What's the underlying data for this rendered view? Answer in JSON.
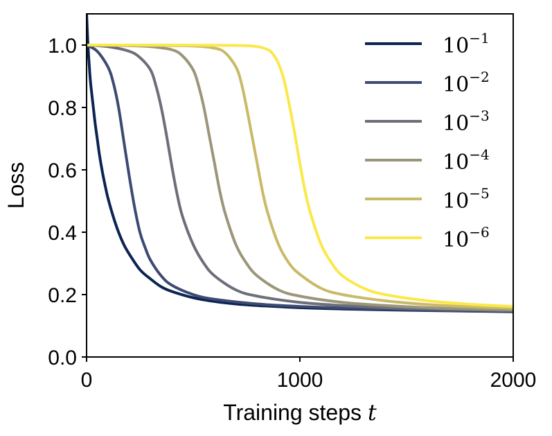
{
  "chart_data": {
    "type": "line",
    "title": "",
    "xlabel": "Training steps",
    "xlabel_var": "t",
    "ylabel": "Loss",
    "xlim": [
      0,
      2000
    ],
    "ylim": [
      0,
      1.1
    ],
    "xticks": [
      0,
      1000,
      2000
    ],
    "yticks": [
      0.0,
      0.2,
      0.4,
      0.6,
      0.8,
      1.0
    ],
    "xtick_labels": [
      "0",
      "1000",
      "2000"
    ],
    "ytick_labels": [
      "0.0",
      "0.2",
      "0.4",
      "0.6",
      "0.8",
      "1.0"
    ],
    "grid": false,
    "legend_position": "top-right",
    "series": [
      {
        "name": "10^-1",
        "base": "10",
        "exponent": "−1",
        "color": "#0b2451",
        "x": [
          0,
          5,
          10,
          15,
          20,
          30,
          40,
          50,
          60,
          75,
          90,
          100,
          125,
          150,
          175,
          200,
          250,
          300,
          350,
          400,
          500,
          600,
          700,
          800,
          1000,
          1200,
          1400,
          1600,
          1800,
          2000
        ],
        "y": [
          1.1,
          1.02,
          0.96,
          0.91,
          0.87,
          0.81,
          0.75,
          0.7,
          0.65,
          0.59,
          0.54,
          0.51,
          0.45,
          0.4,
          0.36,
          0.33,
          0.28,
          0.25,
          0.225,
          0.21,
          0.19,
          0.178,
          0.17,
          0.165,
          0.158,
          0.154,
          0.151,
          0.149,
          0.147,
          0.145
        ]
      },
      {
        "name": "10^-2",
        "base": "10",
        "exponent": "−2",
        "color": "#3d4a72",
        "x": [
          0,
          50,
          100,
          125,
          150,
          175,
          200,
          225,
          250,
          275,
          300,
          350,
          400,
          500,
          600,
          800,
          1000,
          1200,
          1400,
          1600,
          1800,
          2000
        ],
        "y": [
          1.0,
          0.98,
          0.93,
          0.88,
          0.8,
          0.69,
          0.58,
          0.48,
          0.4,
          0.35,
          0.31,
          0.26,
          0.23,
          0.2,
          0.185,
          0.17,
          0.162,
          0.157,
          0.153,
          0.15,
          0.148,
          0.146
        ]
      },
      {
        "name": "10^-3",
        "base": "10",
        "exponent": "−3",
        "color": "#6c6f79",
        "x": [
          0,
          100,
          200,
          250,
          300,
          325,
          350,
          375,
          400,
          425,
          450,
          500,
          550,
          600,
          700,
          800,
          1000,
          1200,
          1400,
          1600,
          1800,
          2000
        ],
        "y": [
          1.0,
          0.995,
          0.98,
          0.96,
          0.92,
          0.87,
          0.8,
          0.71,
          0.61,
          0.52,
          0.45,
          0.36,
          0.3,
          0.26,
          0.215,
          0.195,
          0.175,
          0.165,
          0.158,
          0.154,
          0.151,
          0.148
        ]
      },
      {
        "name": "10^-4",
        "base": "10",
        "exponent": "−4",
        "color": "#9b9579",
        "x": [
          0,
          200,
          300,
          400,
          450,
          500,
          525,
          550,
          575,
          600,
          625,
          650,
          700,
          750,
          800,
          900,
          1000,
          1200,
          1400,
          1600,
          1800,
          2000
        ],
        "y": [
          1.0,
          0.998,
          0.995,
          0.985,
          0.965,
          0.92,
          0.87,
          0.8,
          0.71,
          0.62,
          0.53,
          0.46,
          0.36,
          0.3,
          0.26,
          0.215,
          0.195,
          0.175,
          0.165,
          0.158,
          0.154,
          0.151
        ]
      },
      {
        "name": "10^-5",
        "base": "10",
        "exponent": "−5",
        "color": "#c9ba68",
        "x": [
          0,
          300,
          500,
          600,
          650,
          700,
          725,
          750,
          775,
          800,
          825,
          850,
          900,
          950,
          1000,
          1100,
          1200,
          1400,
          1600,
          1800,
          2000
        ],
        "y": [
          1.0,
          0.999,
          0.997,
          0.99,
          0.975,
          0.93,
          0.88,
          0.8,
          0.71,
          0.62,
          0.53,
          0.46,
          0.36,
          0.3,
          0.265,
          0.22,
          0.2,
          0.18,
          0.168,
          0.161,
          0.156
        ]
      },
      {
        "name": "10^-6",
        "base": "10",
        "exponent": "−6",
        "color": "#fbe84a",
        "x": [
          0,
          400,
          700,
          800,
          850,
          875,
          900,
          925,
          950,
          975,
          1000,
          1025,
          1050,
          1100,
          1150,
          1200,
          1300,
          1400,
          1600,
          1800,
          2000
        ],
        "y": [
          1.0,
          1.0,
          0.999,
          0.995,
          0.985,
          0.97,
          0.94,
          0.89,
          0.81,
          0.72,
          0.62,
          0.53,
          0.46,
          0.36,
          0.3,
          0.26,
          0.22,
          0.2,
          0.18,
          0.169,
          0.162
        ]
      }
    ]
  }
}
